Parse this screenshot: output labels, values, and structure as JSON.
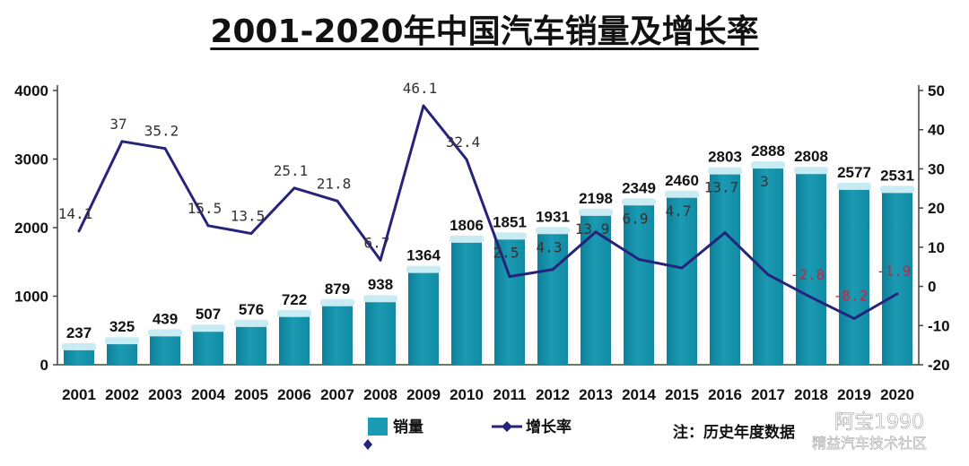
{
  "title": "2001-2020年中国汽车销量及增长率",
  "legend": {
    "bar_label": "销量",
    "line_label": "增长率"
  },
  "note": "注：历史年度数据",
  "watermark": {
    "line1": "阿宝1990",
    "line2": "精益汽车技术社区"
  },
  "colors": {
    "bar": "#1b9ab3",
    "bar_light": "#c9ecf2",
    "line": "#26237a",
    "negative_label": "#d21f3c"
  },
  "chart_data": {
    "type": "bar",
    "title": "2001-2020年中国汽车销量及增长率",
    "categories": [
      "2001",
      "2002",
      "2003",
      "2004",
      "2005",
      "2006",
      "2007",
      "2008",
      "2009",
      "2010",
      "2011",
      "2012",
      "2013",
      "2014",
      "2015",
      "2016",
      "2017",
      "2018",
      "2019",
      "2020"
    ],
    "series": [
      {
        "name": "销量",
        "type": "bar",
        "axis": "left",
        "values": [
          237,
          325,
          439,
          507,
          576,
          722,
          879,
          938,
          1364,
          1806,
          1851,
          1931,
          2198,
          2349,
          2460,
          2803,
          2888,
          2808,
          2577,
          2531
        ]
      },
      {
        "name": "增长率",
        "type": "line",
        "axis": "right",
        "values": [
          14.1,
          37,
          35.2,
          15.5,
          13.5,
          25.1,
          21.8,
          6.7,
          46.1,
          32.4,
          2.5,
          4.3,
          13.9,
          6.9,
          4.7,
          13.7,
          3,
          -2.8,
          -8.2,
          -1.9
        ]
      }
    ],
    "y_left": {
      "min": 0,
      "max": 4000,
      "ticks": [
        0,
        1000,
        2000,
        3000,
        4000
      ]
    },
    "y_right": {
      "min": -20,
      "max": 50,
      "ticks": [
        -20,
        -10,
        0,
        10,
        20,
        30,
        40,
        50
      ]
    },
    "legend_position": "bottom",
    "grid": false
  }
}
